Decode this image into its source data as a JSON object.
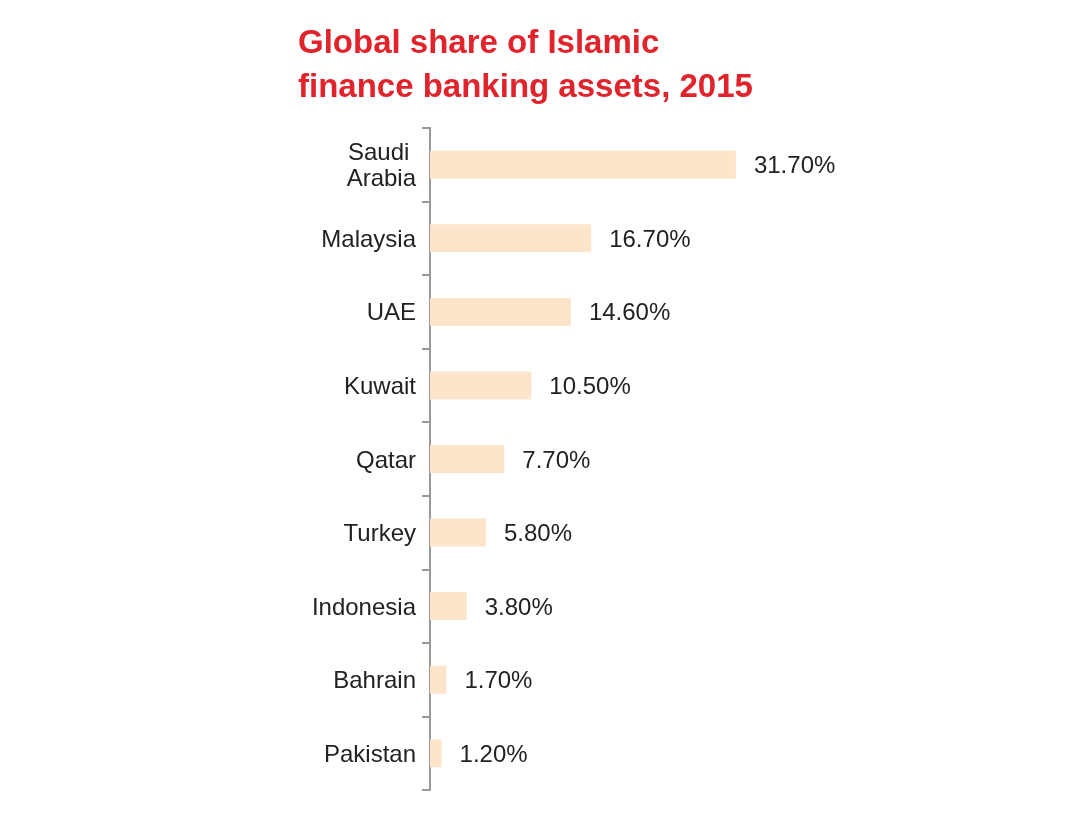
{
  "chart_data": {
    "type": "bar",
    "orientation": "horizontal",
    "title": "Global share of Islamic finance banking assets, 2015",
    "categories": [
      "Saudi Arabia",
      "Malaysia",
      "UAE",
      "Kuwait",
      "Qatar",
      "Turkey",
      "Indonesia",
      "Bahrain",
      "Pakistan"
    ],
    "values": [
      31.7,
      16.7,
      14.6,
      10.5,
      7.7,
      5.8,
      3.8,
      1.7,
      1.2
    ],
    "value_labels": [
      "31.70%",
      "16.70%",
      "14.60%",
      "10.50%",
      "7.70%",
      "5.80%",
      "3.80%",
      "1.70%",
      "1.20%"
    ],
    "color": "#fde5cc",
    "grid": false
  }
}
